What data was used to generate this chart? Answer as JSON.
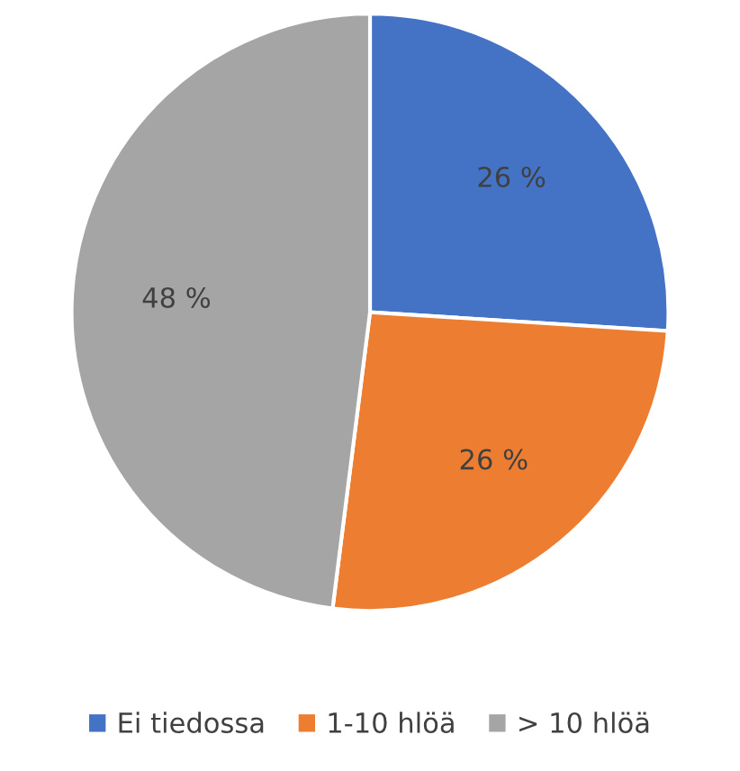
{
  "chart_data": {
    "type": "pie",
    "categories": [
      "Ei tiedossa",
      "1-10 hlöä",
      "> 10 hlöä"
    ],
    "values": [
      26,
      26,
      48
    ],
    "colors": [
      "#4472c4",
      "#ed7d31",
      "#a5a5a5"
    ],
    "value_labels": [
      "26 %",
      "26 %",
      "48 %"
    ],
    "legend": "bottom"
  }
}
